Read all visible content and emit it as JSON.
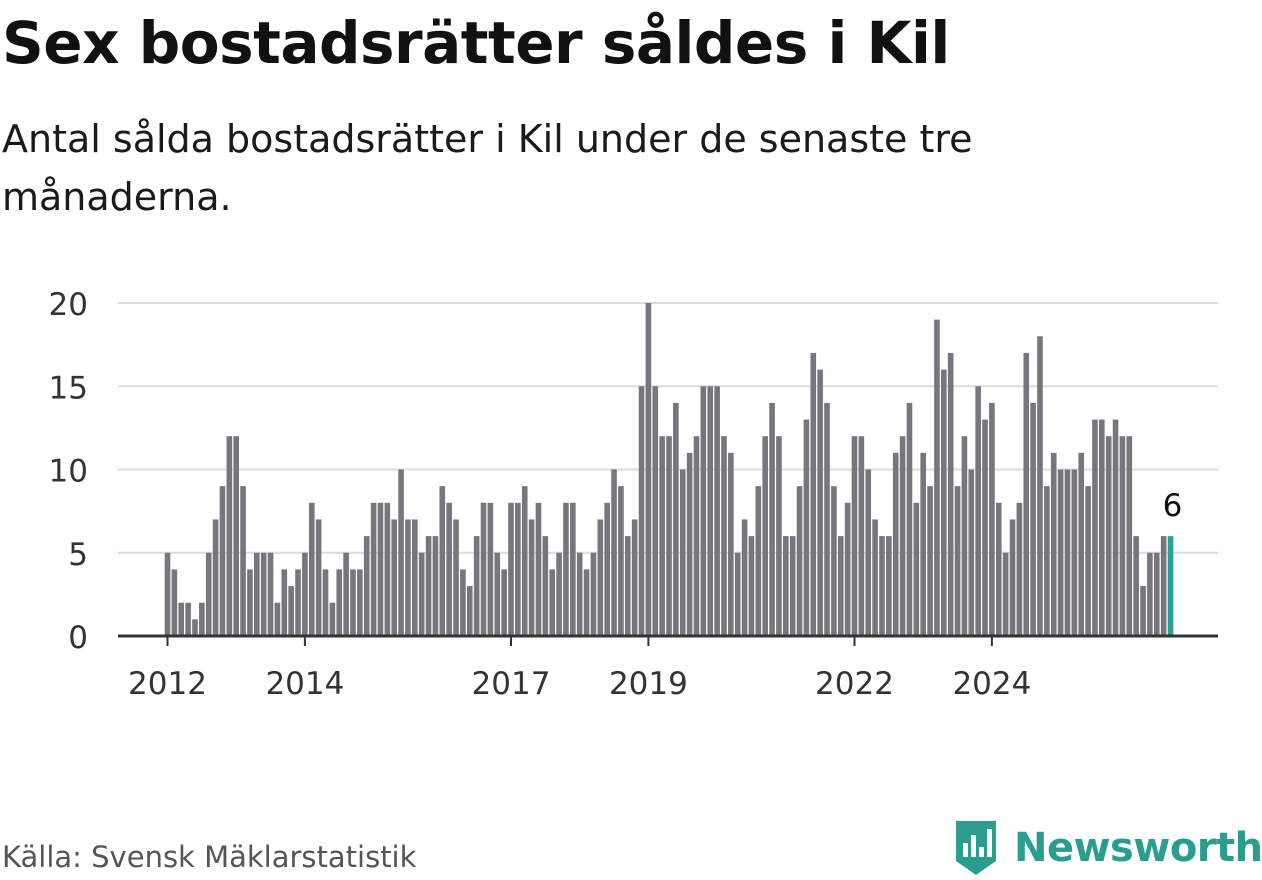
{
  "header": {
    "title": "Sex bostadsrätter såldes i Kil",
    "subtitle": "Antal sålda bostadsrätter i Kil under de senaste tre månaderna."
  },
  "footer": {
    "source": "Källa: Svensk Mäklarstatistik",
    "brand": "Newsworthy",
    "brand_icon": "newsworthy-logo-icon"
  },
  "colors": {
    "bar": "#76767c",
    "highlight": "#2aa198",
    "grid": "#dcdcdc",
    "axis": "#333333",
    "brand": "#2a9d8f"
  },
  "chart_data": {
    "type": "bar",
    "title": "Sex bostadsrätter såldes i Kil",
    "xlabel": "",
    "ylabel": "",
    "ylim": [
      0,
      20
    ],
    "yticks": [
      0,
      5,
      10,
      15,
      20
    ],
    "grid": true,
    "start": "2012-01",
    "highlight_label": "6",
    "xtick_labels": [
      {
        "label": "2012",
        "index": 0
      },
      {
        "label": "2014",
        "index": 20
      },
      {
        "label": "2017",
        "index": 50
      },
      {
        "label": "2019",
        "index": 70
      },
      {
        "label": "2022",
        "index": 100
      },
      {
        "label": "2024",
        "index": 120
      }
    ],
    "values": [
      5,
      4,
      2,
      2,
      1,
      2,
      5,
      7,
      9,
      12,
      12,
      9,
      4,
      5,
      5,
      5,
      2,
      4,
      3,
      4,
      5,
      8,
      7,
      4,
      2,
      4,
      5,
      4,
      4,
      6,
      8,
      8,
      8,
      7,
      10,
      7,
      7,
      5,
      6,
      6,
      9,
      8,
      7,
      4,
      3,
      6,
      8,
      8,
      5,
      4,
      8,
      8,
      9,
      7,
      8,
      6,
      4,
      5,
      8,
      8,
      5,
      4,
      5,
      7,
      8,
      10,
      9,
      6,
      7,
      15,
      20,
      15,
      12,
      12,
      14,
      10,
      11,
      12,
      15,
      15,
      15,
      12,
      11,
      5,
      7,
      6,
      9,
      12,
      14,
      12,
      6,
      6,
      9,
      13,
      17,
      16,
      14,
      9,
      6,
      8,
      12,
      12,
      10,
      7,
      6,
      6,
      11,
      12,
      14,
      8,
      11,
      9,
      19,
      16,
      17,
      9,
      12,
      10,
      15,
      13,
      14,
      8,
      5,
      7,
      8,
      17,
      14,
      18,
      9,
      11,
      10,
      10,
      10,
      11,
      9,
      13,
      13,
      12,
      13,
      12,
      12,
      6,
      3,
      5,
      5,
      6,
      6
    ]
  }
}
